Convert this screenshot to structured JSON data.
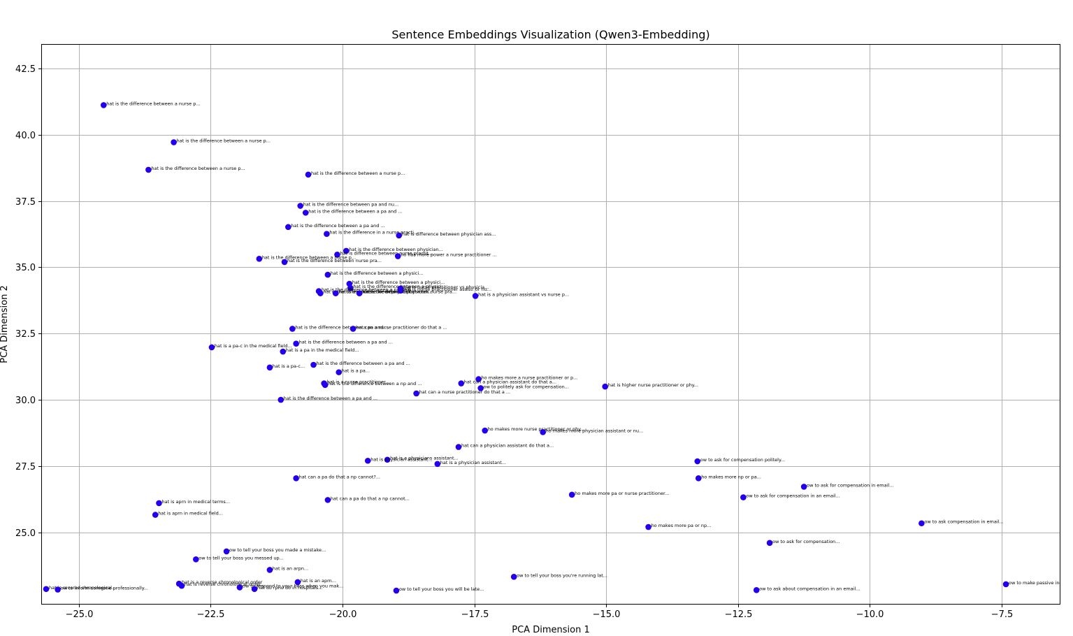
{
  "chart_data": {
    "type": "scatter",
    "title": "Sentence Embeddings Visualization (Qwen3-Embedding)",
    "xlabel": "PCA Dimension 1",
    "ylabel": "PCA Dimension 2",
    "xlim": [
      -25.7,
      -6.4
    ],
    "ylim": [
      22.3,
      43.4
    ],
    "xticks": [
      -25.0,
      -22.5,
      -20.0,
      -17.5,
      -15.0,
      -12.5,
      -10.0,
      -7.5
    ],
    "xtick_labels": [
      "−25.0",
      "−22.5",
      "−20.0",
      "−17.5",
      "−15.0",
      "−12.5",
      "−10.0",
      "−7.5"
    ],
    "yticks": [
      25.0,
      27.5,
      30.0,
      32.5,
      35.0,
      37.5,
      40.0,
      42.5
    ],
    "ytick_labels": [
      "25.0",
      "27.5",
      "30.0",
      "32.5",
      "35.0",
      "37.5",
      "40.0",
      "42.5"
    ],
    "grid": true,
    "marker_color": "#2200ee",
    "points": [
      {
        "x": -24.53,
        "y": 41.12,
        "label": "hat is the difference between a nurse p..."
      },
      {
        "x": -23.2,
        "y": 39.72,
        "label": "hat is the difference between a nurse p..."
      },
      {
        "x": -23.68,
        "y": 38.68,
        "label": "hat is the difference between a nurse p..."
      },
      {
        "x": -20.65,
        "y": 38.5,
        "label": "hat is the difference between a nurse p..."
      },
      {
        "x": -20.8,
        "y": 37.32,
        "label": "hat is the difference between pa and nu..."
      },
      {
        "x": -20.7,
        "y": 37.06,
        "label": "hat is the difference between a pa and ..."
      },
      {
        "x": -21.03,
        "y": 36.52,
        "label": "hat is the difference between a pa and ..."
      },
      {
        "x": -20.3,
        "y": 36.26,
        "label": "hat is the difference in a nurse practi..."
      },
      {
        "x": -18.93,
        "y": 36.2,
        "label": "hat is difference between physician ass..."
      },
      {
        "x": -19.93,
        "y": 35.62,
        "label": "hat is the difference between physician..."
      },
      {
        "x": -20.1,
        "y": 35.48,
        "label": "hat is difference between nurse practit..."
      },
      {
        "x": -18.95,
        "y": 35.42,
        "label": "ho has more power a nurse practitioner ..."
      },
      {
        "x": -21.58,
        "y": 35.32,
        "label": "hat is the difference between a nurse p..."
      },
      {
        "x": -21.1,
        "y": 35.2,
        "label": "hat is the difference between nurse pra..."
      },
      {
        "x": -20.28,
        "y": 34.72,
        "label": "hat is the difference between a physici..."
      },
      {
        "x": -19.87,
        "y": 34.38,
        "label": "hat is the difference between a physici..."
      },
      {
        "x": -19.85,
        "y": 34.22,
        "label": "hat is the difference between a physici..."
      },
      {
        "x": -18.9,
        "y": 34.2,
        "label": "hat is nurse practitioner vs physicia..."
      },
      {
        "x": -20.45,
        "y": 34.1,
        "label": "hat is the difference between a nurse p..."
      },
      {
        "x": -20.42,
        "y": 34.02,
        "label": "hat is the difference between physicia..."
      },
      {
        "x": -20.13,
        "y": 34.02,
        "label": "hat is the difference between physician..."
      },
      {
        "x": -19.68,
        "y": 34.02,
        "label": "hat is the difference between nurse pra..."
      },
      {
        "x": -18.9,
        "y": 34.12,
        "label": "hat is nurse practitioner assist. or nu..."
      },
      {
        "x": -17.48,
        "y": 33.92,
        "label": "hat is a physician assistant vs nurse p..."
      },
      {
        "x": -20.95,
        "y": 32.68,
        "label": "hat is the difference between a pa and ..."
      },
      {
        "x": -19.8,
        "y": 32.68,
        "label": "hat can a nurse practitioner do that a ..."
      },
      {
        "x": -20.88,
        "y": 32.12,
        "label": "hat is the difference between a pa and ..."
      },
      {
        "x": -22.48,
        "y": 31.98,
        "label": "hat is a pa-c in the medical field..."
      },
      {
        "x": -21.13,
        "y": 31.82,
        "label": "hat is a pa in the medical field..."
      },
      {
        "x": -20.55,
        "y": 31.32,
        "label": "hat is the difference between a pa and ..."
      },
      {
        "x": -21.38,
        "y": 31.22,
        "label": "hat is a pa-c..."
      },
      {
        "x": -20.07,
        "y": 31.04,
        "label": "hat is a pa..."
      },
      {
        "x": -17.42,
        "y": 30.78,
        "label": "ho makes more a nurse practitioner or p..."
      },
      {
        "x": -20.35,
        "y": 30.62,
        "label": "hat is a nurse practitioner..."
      },
      {
        "x": -20.33,
        "y": 30.56,
        "label": "hat is the difference between a np and ..."
      },
      {
        "x": -17.75,
        "y": 30.62,
        "label": "hat can a physician assistant do that a..."
      },
      {
        "x": -15.02,
        "y": 30.5,
        "label": "hat is higher nurse practitioner or phy..."
      },
      {
        "x": -17.38,
        "y": 30.44,
        "label": "ow to politely ask for compensation..."
      },
      {
        "x": -18.6,
        "y": 30.24,
        "label": "hat can a nurse practitioner do that a ..."
      },
      {
        "x": -21.17,
        "y": 30.0,
        "label": "hat is the difference between a pa and ..."
      },
      {
        "x": -17.3,
        "y": 28.84,
        "label": "ho makes more nurse practitioner or phy..."
      },
      {
        "x": -16.2,
        "y": 28.78,
        "label": "ho makes more physician assistant or nu..."
      },
      {
        "x": -17.8,
        "y": 28.22,
        "label": "hat can a physician assistant do that a..."
      },
      {
        "x": -19.15,
        "y": 27.74,
        "label": "hat is a physicians assistant..."
      },
      {
        "x": -19.52,
        "y": 27.7,
        "label": "hat is physician assistant..."
      },
      {
        "x": -13.27,
        "y": 27.68,
        "label": "ow to ask for compensation politely..."
      },
      {
        "x": -18.2,
        "y": 27.58,
        "label": "hat is a physician assistant..."
      },
      {
        "x": -13.25,
        "y": 27.04,
        "label": "ho makes more np or pa..."
      },
      {
        "x": -20.88,
        "y": 27.04,
        "label": "hat can a pa do that a np cannot?..."
      },
      {
        "x": -11.25,
        "y": 26.72,
        "label": "ow to ask for compensation in email..."
      },
      {
        "x": -15.65,
        "y": 26.42,
        "label": "ho makes more pa or nurse practitioner..."
      },
      {
        "x": -12.4,
        "y": 26.32,
        "label": "ow to ask for compensation in an email..."
      },
      {
        "x": -20.28,
        "y": 26.22,
        "label": "hat can a pa do that a np cannot..."
      },
      {
        "x": -23.48,
        "y": 26.1,
        "label": "hat is aprn in medical terms..."
      },
      {
        "x": -23.55,
        "y": 25.66,
        "label": "hat is aprn in medical field..."
      },
      {
        "x": -9.02,
        "y": 25.34,
        "label": "ow to ask compensation in email..."
      },
      {
        "x": -14.2,
        "y": 25.2,
        "label": "ho makes more pa or np..."
      },
      {
        "x": -11.9,
        "y": 24.6,
        "label": "ow to ask for compensation..."
      },
      {
        "x": -22.2,
        "y": 24.28,
        "label": "ow to tell your boss you made a mistake..."
      },
      {
        "x": -22.78,
        "y": 23.98,
        "label": "ow to tell your boss you messed up..."
      },
      {
        "x": -21.38,
        "y": 23.58,
        "label": "hat is an arpn..."
      },
      {
        "x": -16.75,
        "y": 23.32,
        "label": "ow to tell your boss you're running lat..."
      },
      {
        "x": -20.85,
        "y": 23.12,
        "label": "hat is an aprn..."
      },
      {
        "x": -23.1,
        "y": 23.06,
        "label": "hat is a reverse chronological order"
      },
      {
        "x": -23.05,
        "y": 22.98,
        "label": "hat is reverse chronological order..."
      },
      {
        "x": -7.42,
        "y": 23.04,
        "label": "ow to make passive inco..."
      },
      {
        "x": -21.95,
        "y": 22.92,
        "label": "ow to respond to your boss when you mak..."
      },
      {
        "x": -25.62,
        "y": 22.86,
        "label": "hat is reverse chronological..."
      },
      {
        "x": -25.4,
        "y": 22.84,
        "label": "ow to inform someone professionally..."
      },
      {
        "x": -21.67,
        "y": 22.86,
        "label": "hat do rpno do in hospitals..."
      },
      {
        "x": -18.98,
        "y": 22.8,
        "label": "ow to tell your boss you will be late..."
      },
      {
        "x": -12.15,
        "y": 22.82,
        "label": "ow to ask about compensation in an email..."
      }
    ]
  }
}
